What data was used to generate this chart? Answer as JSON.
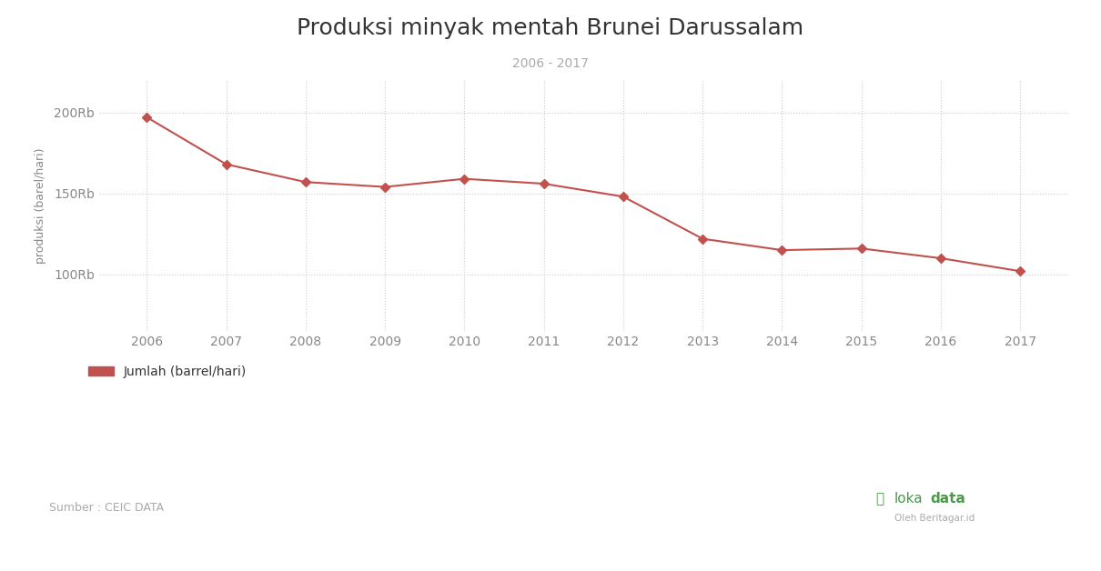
{
  "title": "Produksi minyak mentah Brunei Darussalam",
  "subtitle": "2006 - 2017",
  "ylabel": "produksi (barel/hari)",
  "years": [
    2006,
    2007,
    2008,
    2009,
    2010,
    2011,
    2012,
    2013,
    2014,
    2015,
    2016,
    2017
  ],
  "values": [
    197000,
    168000,
    157000,
    154000,
    159000,
    156000,
    148000,
    122000,
    115000,
    116000,
    110000,
    102000
  ],
  "line_color": "#c0514d",
  "marker_color": "#c0514d",
  "background_color": "#ffffff",
  "grid_color": "#cccccc",
  "yticks": [
    100000,
    150000,
    200000
  ],
  "ytick_labels": [
    "100Rb",
    "150Rb",
    "200Rb"
  ],
  "ylim": [
    65000,
    220000
  ],
  "xlim": [
    2005.4,
    2017.6
  ],
  "legend_label": "Jumlah (barrel/hari)",
  "source_text": "Sumber : CEIC DATA",
  "title_fontsize": 18,
  "subtitle_fontsize": 10,
  "axis_label_fontsize": 9,
  "tick_fontsize": 10,
  "legend_fontsize": 10,
  "source_fontsize": 9,
  "title_color": "#333333",
  "subtitle_color": "#aaaaaa",
  "tick_color": "#888888",
  "ylabel_color": "#888888",
  "legend_text_color": "#333333",
  "source_color": "#aaaaaa",
  "logo_color": "#4a9a4a",
  "logo_sub_color": "#aaaaaa"
}
